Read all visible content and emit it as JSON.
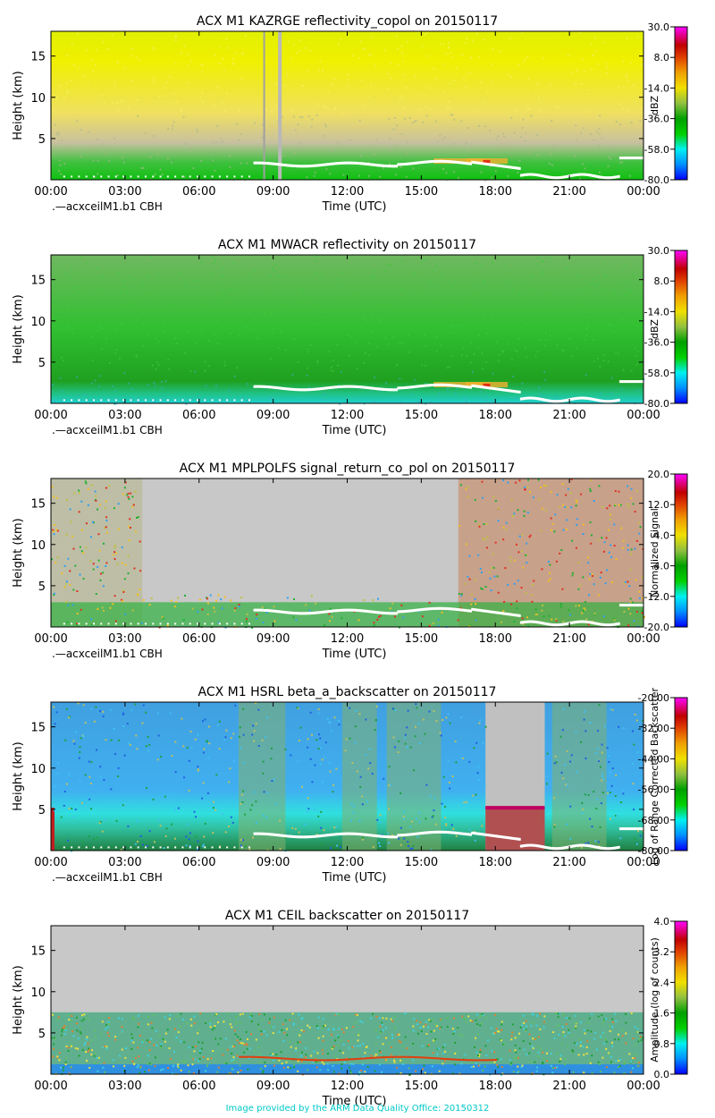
{
  "footer": "Image provided by the ARM Data Quality Office: 20150312",
  "x_ticks": [
    "00:00",
    "03:00",
    "06:00",
    "09:00",
    "12:00",
    "15:00",
    "18:00",
    "21:00",
    "00:00"
  ],
  "y_ticks": [
    "5",
    "10",
    "15"
  ],
  "ceil_legend": ".—acxceilM1.b1 CBH",
  "chart_data": [
    {
      "type": "heatmap",
      "title": "ACX M1 KAZRGE reflectivity_copol on 20150117",
      "xlabel": "Time (UTC)",
      "ylabel": "Height (km)",
      "xlim": [
        "00:00",
        "24:00"
      ],
      "ylim": [
        0,
        18
      ],
      "colorbar": {
        "label": "dBZ",
        "ticks": [
          "30.0",
          "8.0",
          "-14.0",
          "-36.0",
          "-58.0",
          "-80.0"
        ],
        "range": [
          -80,
          30
        ]
      },
      "legend": ".—acxceilM1.b1 CBH",
      "grid": false
    },
    {
      "type": "heatmap",
      "title": "ACX M1 MWACR reflectivity on 20150117",
      "xlabel": "Time (UTC)",
      "ylabel": "Height (km)",
      "xlim": [
        "00:00",
        "24:00"
      ],
      "ylim": [
        0,
        18
      ],
      "colorbar": {
        "label": "dBZ",
        "ticks": [
          "30.0",
          "8.0",
          "-14.0",
          "-36.0",
          "-58.0",
          "-80.0"
        ],
        "range": [
          -80,
          30
        ]
      },
      "legend": ".—acxceilM1.b1 CBH",
      "grid": false
    },
    {
      "type": "heatmap",
      "title": "ACX M1 MPLPOLFS signal_return_co_pol on 20150117",
      "xlabel": "Time (UTC)",
      "ylabel": "Height (km)",
      "xlim": [
        "00:00",
        "24:00"
      ],
      "ylim": [
        0,
        18
      ],
      "colorbar": {
        "label": "Normalized Signal",
        "ticks": [
          "20.0",
          "12.0",
          "4.0",
          "-4.0",
          "-12.0",
          "-20.0"
        ],
        "range": [
          -20,
          20
        ]
      },
      "legend": ".—acxceilM1.b1 CBH",
      "grid": false
    },
    {
      "type": "heatmap",
      "title": "ACX M1 HSRL beta_a_backscatter on 20150117",
      "xlabel": "Time (UTC)",
      "ylabel": "Height (km)",
      "xlim": [
        "00:00",
        "24:00"
      ],
      "ylim": [
        0,
        18
      ],
      "colorbar": {
        "label": "Log of Range Corrected Backscatter",
        "ticks": [
          "-20.00",
          "-32.00",
          "-44.00",
          "-56.00",
          "-68.00",
          "-80.00"
        ],
        "range": [
          -80,
          -20
        ]
      },
      "legend": ".—acxceilM1.b1 CBH",
      "grid": false
    },
    {
      "type": "heatmap",
      "title": "ACX M1 CEIL backscatter on 20150117",
      "xlabel": "Time (UTC)",
      "ylabel": "Height (km)",
      "xlim": [
        "00:00",
        "24:00"
      ],
      "ylim": [
        0,
        18
      ],
      "colorbar": {
        "label": "Amplitude (log of counts)",
        "ticks": [
          "4.0",
          "3.2",
          "2.4",
          "1.6",
          "0.8",
          "0.0"
        ],
        "range": [
          0,
          4
        ]
      },
      "grid": false
    }
  ]
}
